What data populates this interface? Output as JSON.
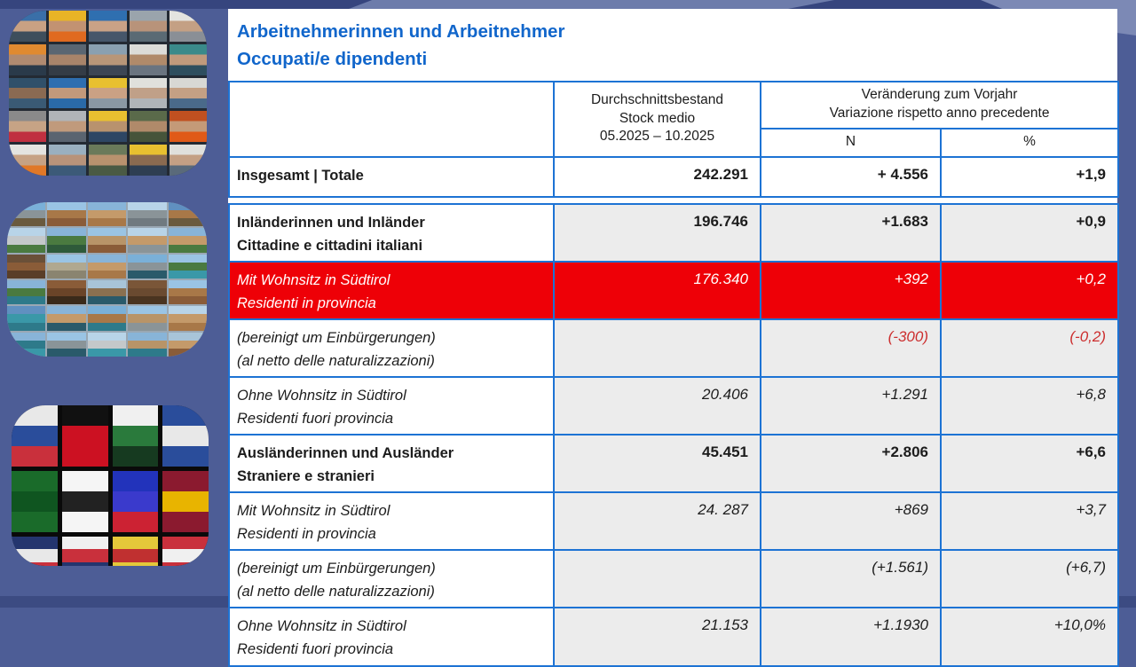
{
  "title": {
    "line1": "Arbeitnehmerinnen und Arbeitnehmer",
    "line2": "Occupati/e dipendenti"
  },
  "table": {
    "headers": {
      "stock_lines": [
        "Durchschnittsbestand",
        "Stock medio",
        "05.2025 – 10.2025"
      ],
      "change_lines": [
        "Veränderung zum Vorjahr",
        "Variazione rispetto anno precedente"
      ],
      "n": "N",
      "pct": "%"
    },
    "rows": [
      {
        "label1": "Insgesamt | Totale",
        "label2": "",
        "stock": "242.291",
        "n": "+ 4.556",
        "pct": "+1,9"
      },
      {
        "label1": "Inländerinnen und Inländer",
        "label2": "Cittadine e cittadini italiani",
        "stock": "196.746",
        "n": "+1.683",
        "pct": "+0,9"
      },
      {
        "label1": "Mit Wohnsitz in Südtirol",
        "label2": "Residenti in provincia",
        "stock": "176.340",
        "n": "+392",
        "pct": "+0,2"
      },
      {
        "label1": "(bereinigt um Einbürgerungen)",
        "label2": "(al netto delle naturalizzazioni)",
        "stock": "",
        "n": "(-300)",
        "pct": "(-0,2)"
      },
      {
        "label1": "Ohne Wohnsitz in Südtirol",
        "label2": "Residenti fuori provincia",
        "stock": "20.406",
        "n": "+1.291",
        "pct": "+6,8"
      },
      {
        "label1": "Ausländerinnen und Ausländer",
        "label2": "Straniere e stranieri",
        "stock": "45.451",
        "n": "+2.806",
        "pct": "+6,6"
      },
      {
        "label1": "Mit Wohnsitz in Südtirol",
        "label2": "Residenti in provincia",
        "stock": "24. 287",
        "n": "+869",
        "pct": "+3,7"
      },
      {
        "label1": "(bereinigt um Einbürgerungen)",
        "label2": "(al netto delle naturalizzazioni)",
        "stock": "",
        "n": "(+1.561)",
        "pct": "(+6,7)"
      },
      {
        "label1": "Ohne Wohnsitz in Südtirol",
        "label2": "Residenti fuori provincia",
        "stock": "21.153",
        "n": "+1.1930",
        "pct": "+10,0%"
      }
    ]
  },
  "images": {
    "workers": "collage of portraits of workers with hard hats and safety vests",
    "places": "collage of South Tyrol / Italian town and landscape photos",
    "flags": "collage of national flags"
  },
  "colors": {
    "background": "#4d5d96",
    "background_dark": "#36457e",
    "background_light": "#6d7cab",
    "panel": "#ffffff",
    "border_blue": "#1d73d4",
    "title_blue": "#1166cb",
    "cell_gray": "#ececec",
    "highlight_red": "#ee0007",
    "note_red": "#cc2e2e",
    "text": "#1c1c1c"
  },
  "collages": {
    "workers": {
      "cols": 5,
      "cells": [
        [
          "#3a6fa8",
          "#c9a183",
          "#3e4e5c"
        ],
        [
          "#e8b426",
          "#c29272",
          "#e06a20"
        ],
        [
          "#2f6fb0",
          "#c9a286",
          "#46566a"
        ],
        [
          "#9aa4ac",
          "#b8937a",
          "#5a6a74"
        ],
        [
          "#e4e4e0",
          "#c4a084",
          "#8a8f96"
        ],
        [
          "#e08a30",
          "#b08a70",
          "#2a3a4a"
        ],
        [
          "#5a6672",
          "#a8846a",
          "#343c46"
        ],
        [
          "#8aa0b0",
          "#b89678",
          "#3c4654"
        ],
        [
          "#dcdcd8",
          "#b08a6a",
          "#6a7480"
        ],
        [
          "#3a8a8a",
          "#c09a7c",
          "#2e4e5e"
        ],
        [
          "#30506a",
          "#8a6a52",
          "#3a5a74"
        ],
        [
          "#2e6eb0",
          "#c2997b",
          "#2a6aa8"
        ],
        [
          "#e8c030",
          "#caa184",
          "#8a98a4"
        ],
        [
          "#e0e0dc",
          "#c0a088",
          "#b0b4b8"
        ],
        [
          "#d8d8d4",
          "#c4a084",
          "#4a6a8a"
        ],
        [
          "#8a8a8a",
          "#c6a385",
          "#c03040"
        ],
        [
          "#b0b4b8",
          "#c09a7c",
          "#5a6470"
        ],
        [
          "#e8c030",
          "#b8926e",
          "#2e4664"
        ],
        [
          "#5a6a4a",
          "#b08a6a",
          "#46543a"
        ],
        [
          "#c05020",
          "#c49a78",
          "#e05a18"
        ],
        [
          "#e4e4e0",
          "#c6a284",
          "#e07828"
        ],
        [
          "#9ab0c0",
          "#b8937a",
          "#3c5a78"
        ],
        [
          "#6a7a5a",
          "#b8926e",
          "#4a5a44"
        ],
        [
          "#e8c030",
          "#8a6a50",
          "#2e3e52"
        ],
        [
          "#e0e0dc",
          "#c4a084",
          "#5a6a7a"
        ]
      ]
    },
    "places": {
      "cols": 5,
      "cells": [
        [
          "#7ab0d8",
          "#8a9498",
          "#6a5a3e"
        ],
        [
          "#9ac4e4",
          "#a87848",
          "#8a5c38"
        ],
        [
          "#88b4d8",
          "#c49a6a",
          "#a87848"
        ],
        [
          "#b8d4e8",
          "#8a9498",
          "#707a80"
        ],
        [
          "#6090c0",
          "#a87848",
          "#6a5a3e"
        ],
        [
          "#b8d4e8",
          "#c4c8ca",
          "#4a7a40"
        ],
        [
          "#88b4d8",
          "#4a7a40",
          "#2e5a3a"
        ],
        [
          "#9ac4e4",
          "#b89468",
          "#8a5c38"
        ],
        [
          "#b8d4e8",
          "#c49a6a",
          "#8a9498"
        ],
        [
          "#88b4d8",
          "#c49a6a",
          "#4a7a40"
        ],
        [
          "#6a5038",
          "#8a5c38",
          "#5a3e28"
        ],
        [
          "#9ac4e4",
          "#b0a890",
          "#8a8470"
        ],
        [
          "#88b4d8",
          "#c49a6a",
          "#a87848"
        ],
        [
          "#7ab0d8",
          "#8a9498",
          "#2a5a6a"
        ],
        [
          "#9ac4e4",
          "#4a7a40",
          "#3a98a8"
        ],
        [
          "#88b4d8",
          "#4a7a40",
          "#2e7a8a"
        ],
        [
          "#8a5c38",
          "#6a4428",
          "#3a2a1a"
        ],
        [
          "#a8c4d8",
          "#8a7050",
          "#2a5a6a"
        ],
        [
          "#7a5638",
          "#6a4a30",
          "#4a3420"
        ],
        [
          "#9ac4e4",
          "#a87848",
          "#8a5c38"
        ],
        [
          "#6090c0",
          "#3a98a8",
          "#2e7a8a"
        ],
        [
          "#88b4d8",
          "#c49a6a",
          "#2a5a6a"
        ],
        [
          "#7ab0d8",
          "#a87848",
          "#2e7a8a"
        ],
        [
          "#9ac4e4",
          "#b89468",
          "#8a9498"
        ],
        [
          "#b8d4e8",
          "#c49a6a",
          "#a87848"
        ],
        [
          "#88b4d8",
          "#2e7a8a",
          "#3a98a8"
        ],
        [
          "#9ac4e4",
          "#8a9498",
          "#2a5a6a"
        ],
        [
          "#b8d4e8",
          "#c4c8ca",
          "#3a98a8"
        ],
        [
          "#88b4d8",
          "#b89468",
          "#2e7a8a"
        ],
        [
          "#a8c4d8",
          "#c49a6a",
          "#8a5c38"
        ]
      ]
    },
    "flags": {
      "cols": 4,
      "cells": [
        [
          "#e8e8e8",
          "#2a4d9b",
          "#c9303c"
        ],
        [
          "#111111",
          "#cc1122",
          "#cc1122"
        ],
        [
          "#f0f0f0",
          "#2a7a3c",
          "#163a20"
        ],
        [
          "#2a4d9b",
          "#e8e8e8",
          "#2a4d9b"
        ],
        [
          "#1a6b2a",
          "#0f5520",
          "#1a6b2a"
        ],
        [
          "#f5f5f5",
          "#222222",
          "#f5f5f5"
        ],
        [
          "#2233bb",
          "#3a3acc",
          "#cc2233"
        ],
        [
          "#8b1a2f",
          "#e8b400",
          "#8b1a2f"
        ],
        [
          "#24356e",
          "#e8e8e8",
          "#c9303c"
        ],
        [
          "#f0f0f0",
          "#c9303c",
          "#24356e"
        ],
        [
          "#e4c83a",
          "#c03030",
          "#e4c83a"
        ],
        [
          "#c9303c",
          "#f0f0f0",
          "#c9303c"
        ]
      ]
    }
  }
}
